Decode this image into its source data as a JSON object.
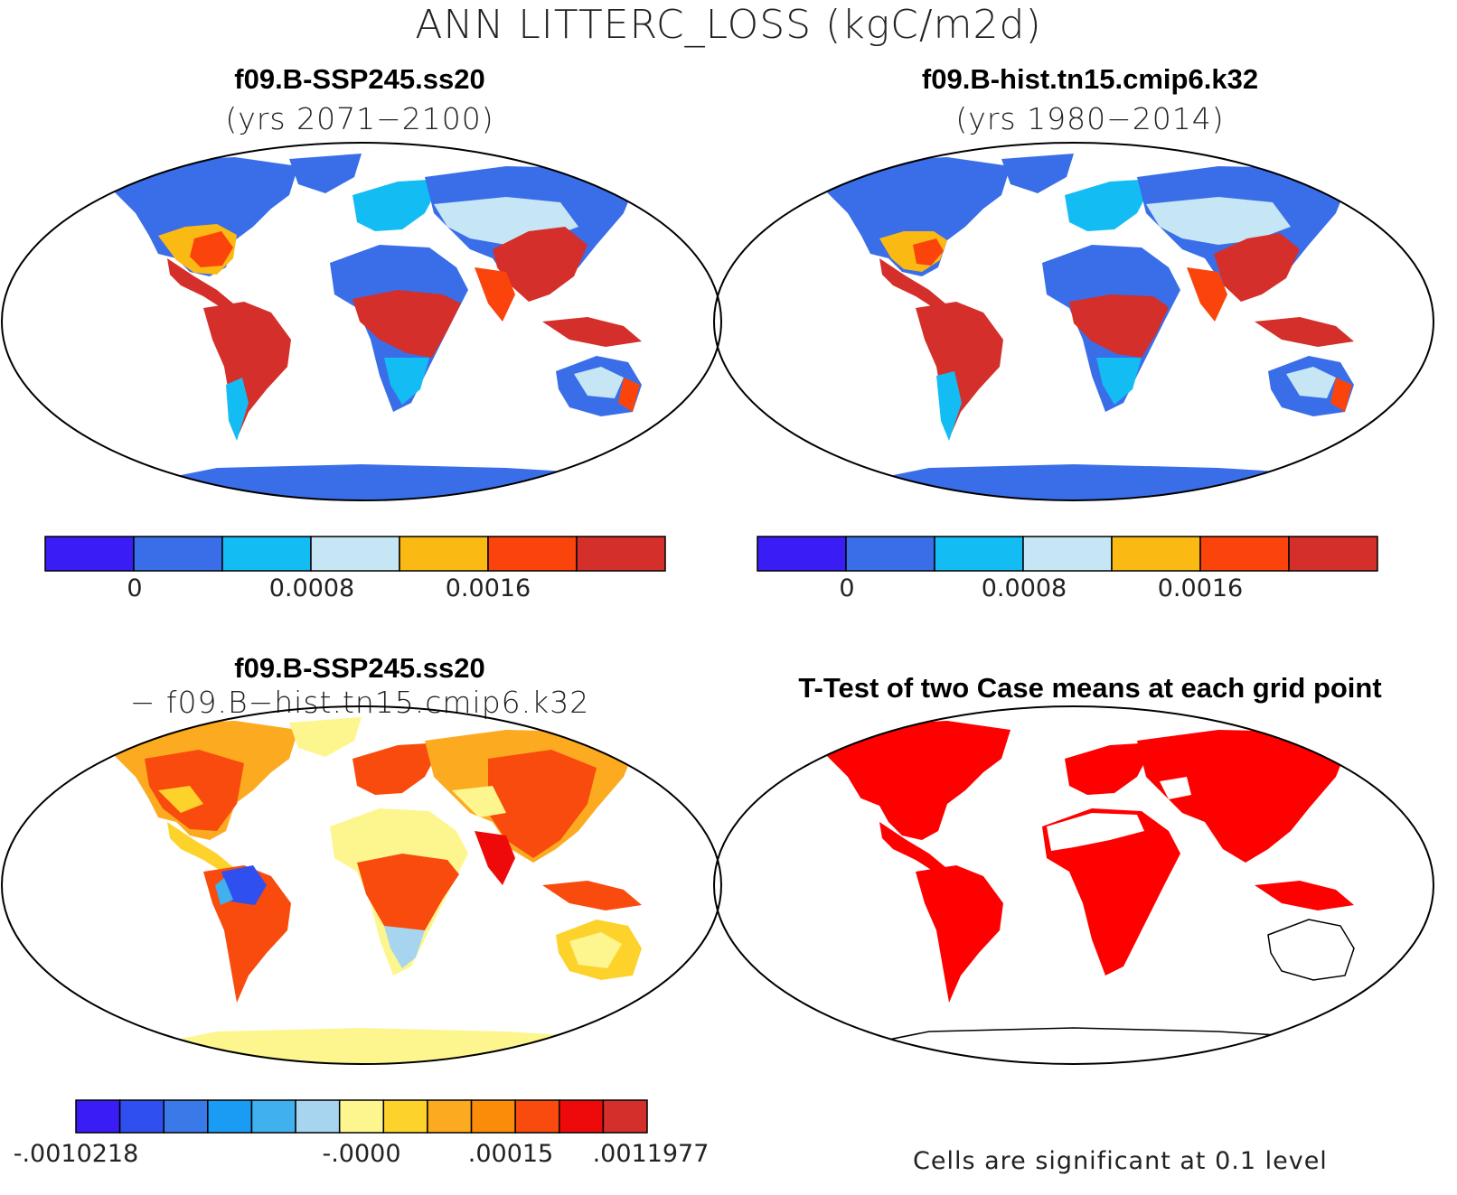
{
  "title": "ANN LITTERC_LOSS (kgC/m2d)",
  "panels": {
    "top_left": {
      "title": "f09.B-SSP245.ss20",
      "subtitle": "(yrs 2071−2100)"
    },
    "top_right": {
      "title": "f09.B-hist.tn15.cmip6.k32",
      "subtitle": "(yrs 1980−2014)"
    },
    "bottom_left": {
      "title": "f09.B-SSP245.ss20",
      "subtitle": "− f09.B−hist.tn15.cmip6.k32"
    },
    "bottom_right": {
      "title": "T-Test of two Case means at each grid point",
      "note": "Cells are significant at 0.1 level"
    }
  },
  "colorbars": {
    "case": {
      "colors": [
        "#3a1df5",
        "#3a6ee8",
        "#14bcf4",
        "#c6e6f6",
        "#fbb913",
        "#fb440b",
        "#d42f2a"
      ],
      "tick_labels": [
        "0",
        "0.0008",
        "0.0016"
      ]
    },
    "diff": {
      "colors": [
        "#3a1df5",
        "#2f50ee",
        "#3a7ae8",
        "#1a9bf4",
        "#40b0ee",
        "#a7d5ef",
        "#fdf68e",
        "#fdd22a",
        "#fcaa20",
        "#fb8c0a",
        "#f84b0d",
        "#ee0a0a",
        "#d42f2a"
      ],
      "tick_labels": [
        "-.0010218",
        "-.0000",
        ".00015",
        ".0011977"
      ]
    }
  },
  "colors": {
    "ttest_significant": "#ff0000",
    "map_outline": "#000000"
  }
}
